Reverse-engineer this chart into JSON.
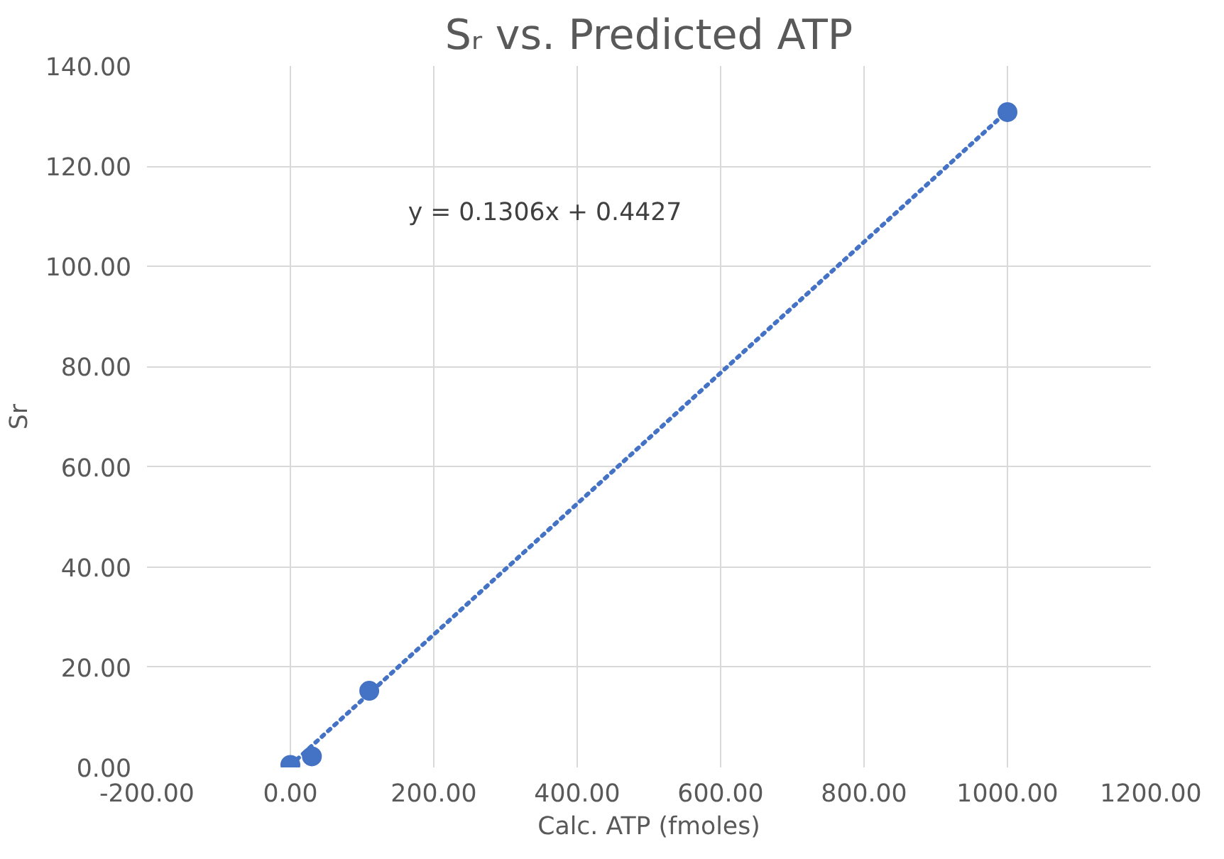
{
  "chart_data": {
    "type": "scatter",
    "title": "Sᵣ vs. Predicted ATP",
    "xlabel": "Calc. ATP (fmoles)",
    "ylabel": "Sr",
    "series": [
      {
        "color": "#4472c4",
        "marker": "circle",
        "x": [
          0,
          30,
          110,
          1000
        ],
        "values": [
          0.5,
          2.2,
          15.3,
          130.8
        ]
      },
      {
        "type": "line",
        "color": "#4472c4",
        "line_style": "dotted",
        "x": [
          0,
          1000
        ],
        "values": [
          0.4,
          131.0
        ]
      }
    ],
    "annotations": [
      "y = 0.1306x + 0.4427"
    ],
    "xlim": [
      -200,
      1200
    ],
    "ylim": [
      0,
      140
    ],
    "xticks": [
      {
        "value": -200,
        "label": "-200.00"
      },
      {
        "value": 0,
        "label": "0.00"
      },
      {
        "value": 200,
        "label": "200.00"
      },
      {
        "value": 400,
        "label": "400.00"
      },
      {
        "value": 600,
        "label": "600.00"
      },
      {
        "value": 800,
        "label": "800.00"
      },
      {
        "value": 1000,
        "label": "1000.00"
      },
      {
        "value": 1200,
        "label": "1200.00"
      }
    ],
    "yticks": [
      {
        "value": 0,
        "label": "0.00"
      },
      {
        "value": 20,
        "label": "20.00"
      },
      {
        "value": 40,
        "label": "40.00"
      },
      {
        "value": 60,
        "label": "60.00"
      },
      {
        "value": 80,
        "label": "80.00"
      },
      {
        "value": 100,
        "label": "100.00"
      },
      {
        "value": 120,
        "label": "120.00"
      },
      {
        "value": 140,
        "label": "140.00"
      }
    ],
    "grid": true
  }
}
